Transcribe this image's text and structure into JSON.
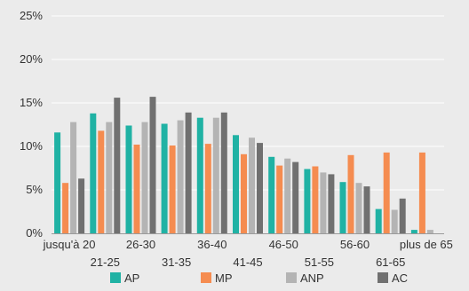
{
  "chart_data": {
    "type": "bar",
    "title": "",
    "xlabel": "",
    "ylabel": "",
    "ylim": [
      0,
      25
    ],
    "y_ticks": [
      0,
      5,
      10,
      15,
      20,
      25
    ],
    "y_tick_labels": [
      "0%",
      "5%",
      "10%",
      "15%",
      "20%",
      "25%"
    ],
    "grid": true,
    "legend": "bottom",
    "categories": [
      "jusqu'à 20",
      "21-25",
      "26-30",
      "31-35",
      "36-40",
      "41-45",
      "46-50",
      "51-55",
      "56-60",
      "61-65",
      "plus de 65"
    ],
    "series": [
      {
        "name": "AP",
        "color": "#20b2a4",
        "values": [
          11.6,
          13.8,
          12.4,
          12.6,
          13.3,
          11.3,
          8.8,
          7.4,
          5.9,
          2.8,
          0.4
        ]
      },
      {
        "name": "MP",
        "color": "#f58c50",
        "values": [
          5.8,
          11.8,
          10.2,
          10.1,
          10.3,
          9.1,
          7.8,
          7.7,
          9.0,
          9.3,
          9.3
        ]
      },
      {
        "name": "ANP",
        "color": "#b4b4b4",
        "values": [
          12.8,
          12.8,
          12.8,
          13.0,
          13.3,
          11.0,
          8.6,
          7.0,
          5.8,
          2.7,
          0.4
        ]
      },
      {
        "name": "AC",
        "color": "#707070",
        "values": [
          6.3,
          15.6,
          15.7,
          13.9,
          13.9,
          10.4,
          8.2,
          6.8,
          5.4,
          4.0,
          0.0
        ]
      }
    ]
  }
}
